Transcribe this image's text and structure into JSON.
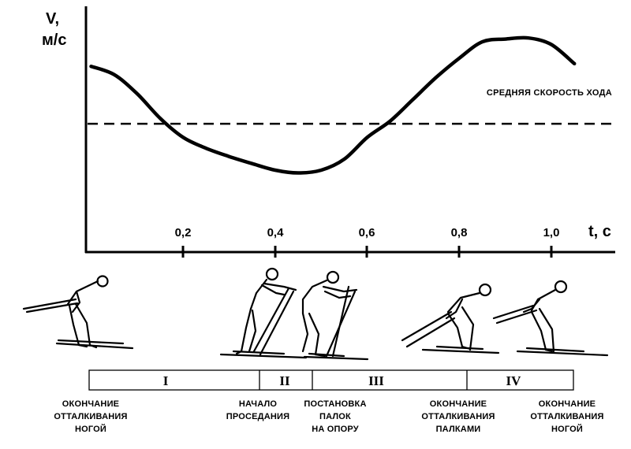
{
  "chart_data": {
    "type": "line",
    "ylabel_line1": "V,",
    "ylabel_line2": "м/с",
    "xlabel": "t, c",
    "x_ticks": [
      "0,2",
      "0,4",
      "0,6",
      "0,8",
      "1,0"
    ],
    "xlim": [
      0,
      1.15
    ],
    "average_label": "СРЕДНЯЯ СКОРОСТЬ ХОДА",
    "series": [
      {
        "x": [
          0.0,
          0.05,
          0.1,
          0.15,
          0.2,
          0.25,
          0.3,
          0.35,
          0.4,
          0.45,
          0.5,
          0.55,
          0.6,
          0.65,
          0.7,
          0.75,
          0.8,
          0.85,
          0.9,
          0.95,
          1.0,
          1.05
        ],
        "y": [
          5.9,
          5.75,
          5.4,
          4.95,
          4.6,
          4.4,
          4.25,
          4.12,
          4.0,
          3.95,
          4.0,
          4.2,
          4.6,
          4.9,
          5.3,
          5.7,
          6.05,
          6.35,
          6.4,
          6.42,
          6.3,
          5.95
        ]
      }
    ],
    "average_value": 4.85,
    "ylim": [
      2.5,
      7.0
    ]
  },
  "phases": [
    "I",
    "II",
    "III",
    "IV"
  ],
  "captions": [
    [
      "ОКОНЧАНИЕ",
      "ОТТАЛКИВАНИЯ",
      "НОГОЙ"
    ],
    [
      "НАЧАЛО",
      "ПРОСЕДАНИЯ"
    ],
    [
      "ПОСТАНОВКА",
      "ПАЛОК",
      "НА ОПОРУ"
    ],
    [
      "ОКОНЧАНИЕ",
      "ОТТАЛКИВАНИЯ",
      "ПАЛКАМИ"
    ],
    [
      "ОКОНЧАНИЕ",
      "ОТТАЛКИВАНИЯ",
      "НОГОЙ"
    ]
  ]
}
